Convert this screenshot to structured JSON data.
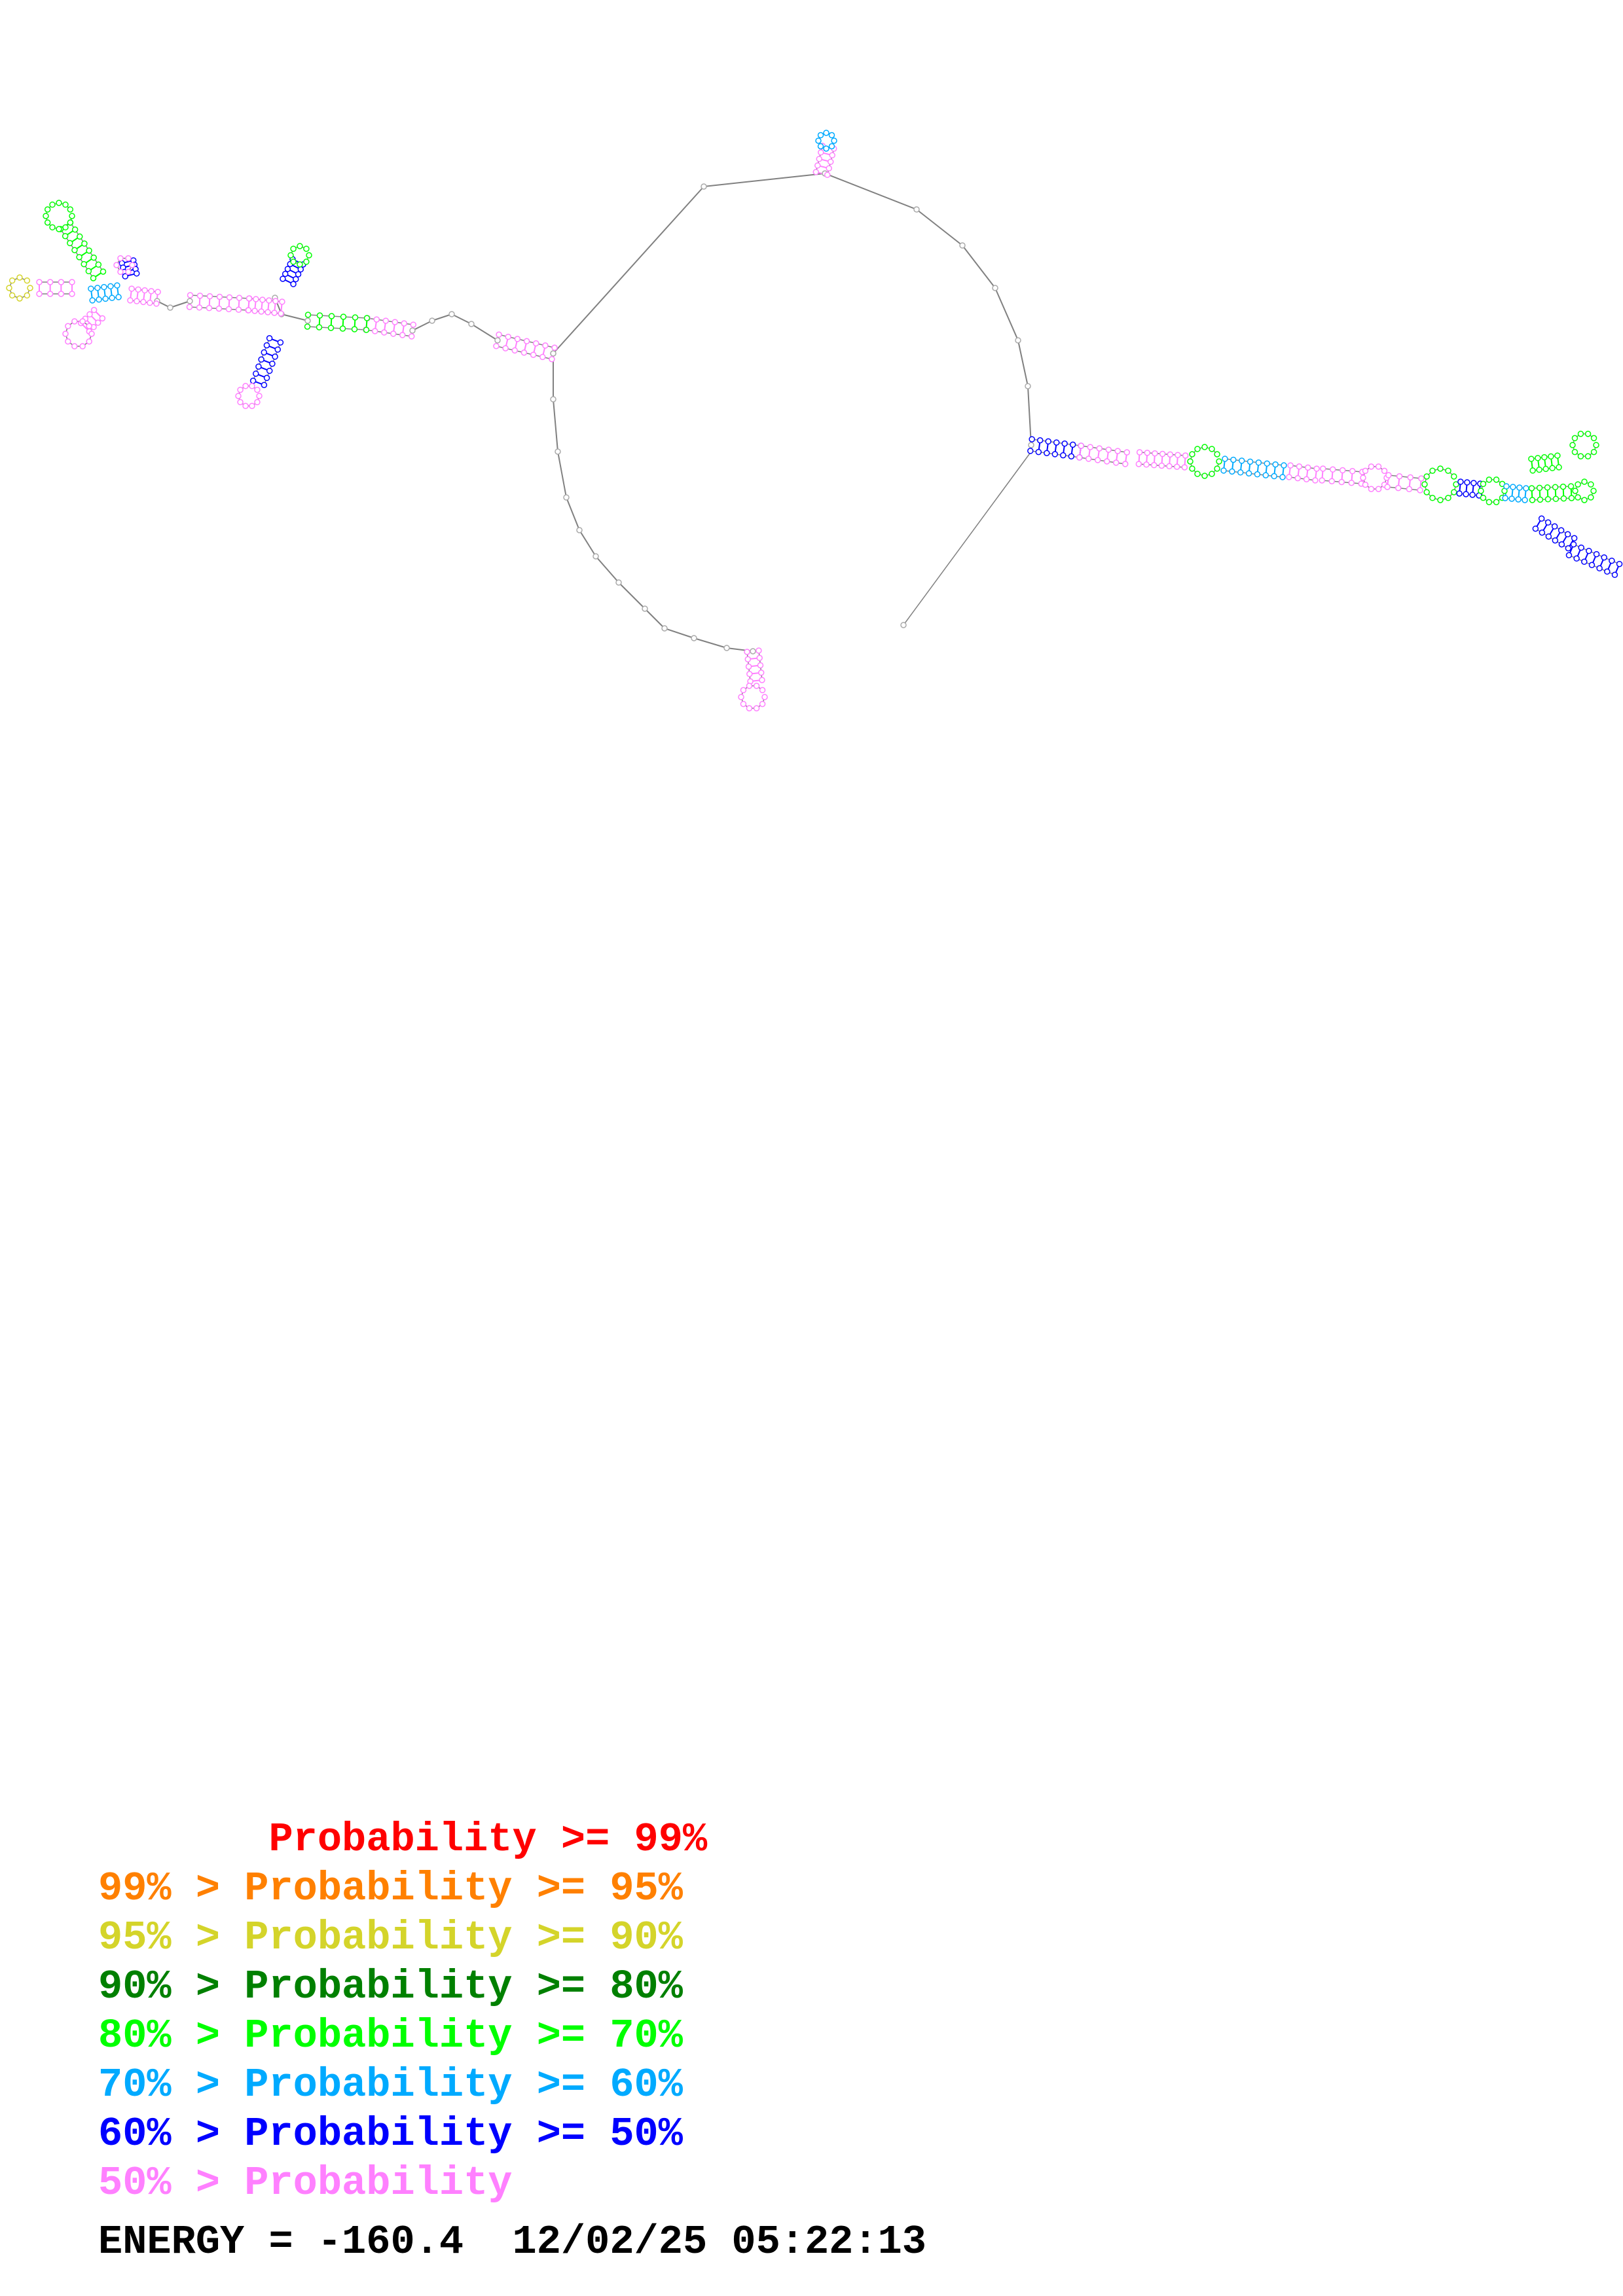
{
  "legend": [
    {
      "text": "       Probability >= 99%",
      "color": "#ff0000"
    },
    {
      "text": "99% > Probability >= 95%",
      "color": "#ff8000"
    },
    {
      "text": "95% > Probability >= 90%",
      "color": "#d4d42a"
    },
    {
      "text": "90% > Probability >= 80%",
      "color": "#008000"
    },
    {
      "text": "80% > Probability >= 70%",
      "color": "#00ff00"
    },
    {
      "text": "70% > Probability >= 60%",
      "color": "#00aaff"
    },
    {
      "text": "60% > Probability >= 50%",
      "color": "#0000ff"
    },
    {
      "text": "50% > Probability",
      "color": "#ff80ff"
    }
  ],
  "energy_label": "ENERGY = -160.4  12/02/25 05:22:13",
  "colors": {
    "backbone": "#707070",
    "default_pair": "#cc66cc"
  }
}
